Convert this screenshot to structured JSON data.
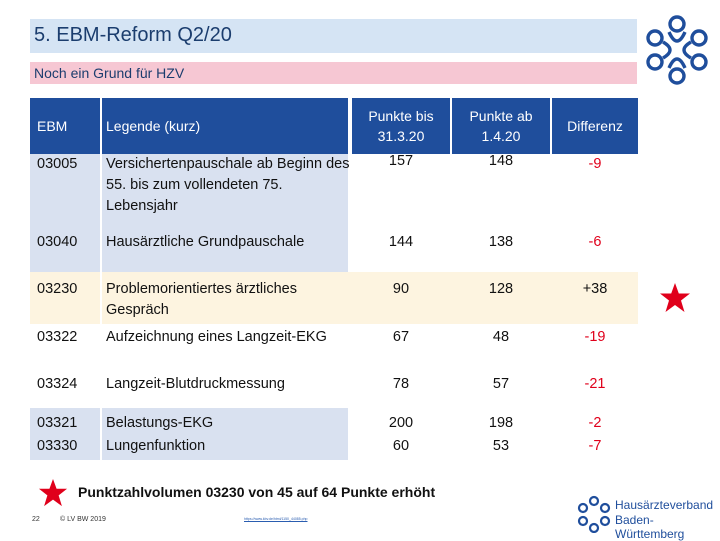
{
  "header": {
    "title": "5. EBM-Reform Q2/20",
    "subtitle": "Noch ein Grund für HZV"
  },
  "table": {
    "columns": {
      "ebm": "EBM",
      "legend": "Legende (kurz)",
      "points_before_l1": "Punkte bis",
      "points_before_l2": "31.3.20",
      "points_after_l1": "Punkte ab",
      "points_after_l2": "1.4.20",
      "diff": "Differenz"
    },
    "rows": [
      {
        "ebm": "03005",
        "legend": "Versichertenpauschale ab Beginn des 55. bis zum vollendeten 75. Lebensjahr",
        "before": "157",
        "after": "148",
        "diff": "-9"
      },
      {
        "ebm": "03040",
        "legend": "Hausärztliche Grundpauschale",
        "before": "144",
        "after": "138",
        "diff": "-6"
      },
      {
        "ebm": "03230",
        "legend": "Problemorientiertes ärztliches Gespräch",
        "before": "90",
        "after": "128",
        "diff": "+38"
      },
      {
        "ebm": "03322",
        "legend": "Aufzeichnung eines Langzeit-EKG",
        "before": "67",
        "after": "48",
        "diff": "-19"
      },
      {
        "ebm": "03324",
        "legend": "Langzeit-Blutdruckmessung",
        "before": "78",
        "after": "57",
        "diff": "-21"
      },
      {
        "ebm": "03321",
        "legend": "Belastungs-EKG",
        "before": "200",
        "after": "198",
        "diff": "-2"
      },
      {
        "ebm": "03330",
        "legend": "Lungenfunktion",
        "before": "60",
        "after": "53",
        "diff": "-7"
      }
    ]
  },
  "note": "Punktzahlvolumen 03230 von 45 auf 64 Punkte erhöht",
  "footer": {
    "page": "22",
    "copyright": "© LV BW 2019",
    "url": "https://www.kbv.de/html/1150_44085.php"
  },
  "brand": {
    "line1": "Hausärzteverband",
    "line2": "Baden-Württemberg"
  },
  "colors": {
    "header_blue": "#1f4e9c",
    "star_red": "#e0001b"
  }
}
